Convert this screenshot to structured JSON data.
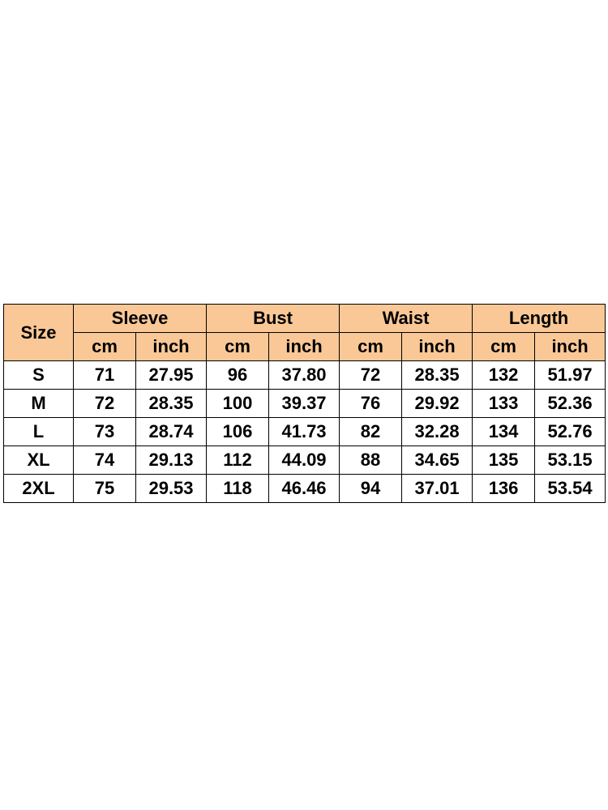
{
  "table": {
    "size_header": "Size",
    "groups": [
      {
        "label": "Sleeve",
        "units": [
          "cm",
          "inch"
        ]
      },
      {
        "label": "Bust",
        "units": [
          "cm",
          "inch"
        ]
      },
      {
        "label": "Waist",
        "units": [
          "cm",
          "inch"
        ]
      },
      {
        "label": "Length",
        "units": [
          "cm",
          "inch"
        ]
      }
    ],
    "rows": [
      {
        "size": "S",
        "values": [
          "71",
          "27.95",
          "96",
          "37.80",
          "72",
          "28.35",
          "132",
          "51.97"
        ]
      },
      {
        "size": "M",
        "values": [
          "72",
          "28.35",
          "100",
          "39.37",
          "76",
          "29.92",
          "133",
          "52.36"
        ]
      },
      {
        "size": "L",
        "values": [
          "73",
          "28.74",
          "106",
          "41.73",
          "82",
          "32.28",
          "134",
          "52.76"
        ]
      },
      {
        "size": "XL",
        "values": [
          "74",
          "29.13",
          "112",
          "44.09",
          "88",
          "34.65",
          "135",
          "53.15"
        ]
      },
      {
        "size": "2XL",
        "values": [
          "75",
          "29.53",
          "118",
          "46.46",
          "94",
          "37.01",
          "136",
          "53.54"
        ]
      }
    ],
    "colors": {
      "header_bg": "#fac896",
      "border": "#000000",
      "text": "#000000"
    }
  }
}
